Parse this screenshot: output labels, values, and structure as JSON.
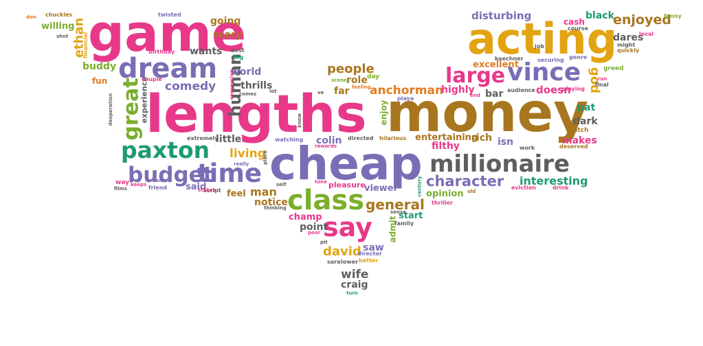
{
  "palette": {
    "pink": "#e8388a",
    "purple": "#7b6db5",
    "gold": "#e3a413",
    "brown": "#a8761e",
    "green": "#7bae2c",
    "teal": "#1d9b6f",
    "gray": "#5e5e5e",
    "orange": "#e07b20"
  },
  "words": [
    {
      "text": "game",
      "color": "pink"
    },
    {
      "text": "acting",
      "color": "gold"
    },
    {
      "text": "dream",
      "color": "purple"
    },
    {
      "text": "lengths",
      "color": "pink"
    },
    {
      "text": "money",
      "color": "brown"
    },
    {
      "text": "cheap",
      "color": "purple"
    },
    {
      "text": "millionaire",
      "color": "gray"
    },
    {
      "text": "paxton",
      "color": "teal"
    },
    {
      "text": "budget",
      "color": "purple"
    },
    {
      "text": "time",
      "color": "purple"
    },
    {
      "text": "class",
      "color": "green"
    },
    {
      "text": "say",
      "color": "pink"
    },
    {
      "text": "general",
      "color": "brown"
    },
    {
      "text": "character",
      "color": "purple"
    },
    {
      "text": "interesting",
      "color": "teal"
    },
    {
      "text": "large",
      "color": "pink"
    },
    {
      "text": "vince",
      "color": "purple"
    },
    {
      "text": "great",
      "color": "green"
    },
    {
      "text": "ethan",
      "color": "gold"
    },
    {
      "text": "human",
      "color": "gray"
    },
    {
      "text": "comedy",
      "color": "purple"
    },
    {
      "text": "people",
      "color": "brown"
    },
    {
      "text": "anchorman",
      "color": "orange"
    },
    {
      "text": "enjoyed",
      "color": "brown"
    },
    {
      "text": "disturbing",
      "color": "purple"
    },
    {
      "text": "black",
      "color": "teal"
    },
    {
      "text": "cash",
      "color": "pink"
    },
    {
      "text": "dares",
      "color": "gray"
    },
    {
      "text": "excellent",
      "color": "orange"
    },
    {
      "text": "buddy",
      "color": "green"
    },
    {
      "text": "going",
      "color": "brown"
    },
    {
      "text": "scary",
      "color": "brown"
    },
    {
      "text": "willing",
      "color": "green"
    },
    {
      "text": "wants",
      "color": "gray"
    },
    {
      "text": "world",
      "color": "purple"
    },
    {
      "text": "thrills",
      "color": "gray"
    },
    {
      "text": "role",
      "color": "brown"
    },
    {
      "text": "far",
      "color": "brown"
    },
    {
      "text": "highly",
      "color": "pink"
    },
    {
      "text": "bar",
      "color": "gray"
    },
    {
      "text": "doesn",
      "color": "pink"
    },
    {
      "text": "god",
      "color": "gold"
    },
    {
      "text": "pat",
      "color": "teal"
    },
    {
      "text": "dark",
      "color": "gray"
    },
    {
      "text": "makes",
      "color": "pink"
    },
    {
      "text": "entertaining",
      "color": "brown"
    },
    {
      "text": "rich",
      "color": "brown"
    },
    {
      "text": "filthy",
      "color": "pink"
    },
    {
      "text": "isn",
      "color": "purple"
    },
    {
      "text": "colin",
      "color": "purple"
    },
    {
      "text": "living",
      "color": "gold"
    },
    {
      "text": "little",
      "color": "gray"
    },
    {
      "text": "man",
      "color": "brown"
    },
    {
      "text": "notice",
      "color": "brown"
    },
    {
      "text": "feel",
      "color": "brown"
    },
    {
      "text": "said",
      "color": "purple"
    },
    {
      "text": "viewer",
      "color": "purple"
    },
    {
      "text": "pleasure",
      "color": "pink"
    },
    {
      "text": "opinion",
      "color": "green"
    },
    {
      "text": "champ",
      "color": "pink"
    },
    {
      "text": "point",
      "color": "gray"
    },
    {
      "text": "start",
      "color": "teal"
    },
    {
      "text": "admit",
      "color": "green"
    },
    {
      "text": "saw",
      "color": "purple"
    },
    {
      "text": "david",
      "color": "gold"
    },
    {
      "text": "wife",
      "color": "gray"
    },
    {
      "text": "craig",
      "color": "gray"
    },
    {
      "text": "enjoy",
      "color": "green"
    },
    {
      "text": "experience",
      "color": "gray"
    },
    {
      "text": "fun",
      "color": "orange"
    },
    {
      "text": "greed",
      "color": "green"
    },
    {
      "text": "playa",
      "color": "purple"
    },
    {
      "text": "day",
      "color": "green"
    },
    {
      "text": "watch",
      "color": "brown"
    },
    {
      "text": "final",
      "color": "gray"
    },
    {
      "text": "playing",
      "color": "pink"
    },
    {
      "text": "eviction",
      "color": "pink"
    },
    {
      "text": "drink",
      "color": "pink"
    },
    {
      "text": "thriller",
      "color": "pink"
    },
    {
      "text": "family",
      "color": "gray"
    },
    {
      "text": "director",
      "color": "purple"
    },
    {
      "text": "lower",
      "color": "gray"
    },
    {
      "text": "better",
      "color": "gold"
    },
    {
      "text": "sara",
      "color": "gray"
    },
    {
      "text": "turn",
      "color": "teal"
    },
    {
      "text": "hilarious",
      "color": "brown"
    },
    {
      "text": "directed",
      "color": "gray"
    },
    {
      "text": "watching",
      "color": "purple"
    },
    {
      "text": "rewards",
      "color": "pink"
    },
    {
      "text": "extremely",
      "color": "gray"
    },
    {
      "text": "really",
      "color": "purple"
    },
    {
      "text": "fame",
      "color": "purple"
    },
    {
      "text": "way",
      "color": "pink"
    },
    {
      "text": "friend",
      "color": "purple"
    },
    {
      "text": "script",
      "color": "gray"
    },
    {
      "text": "chuckles",
      "color": "brown"
    },
    {
      "text": "twisted",
      "color": "purple"
    },
    {
      "text": "funny",
      "color": "green"
    },
    {
      "text": "birthday",
      "color": "pink"
    },
    {
      "text": "best",
      "color": "gray"
    },
    {
      "text": "big",
      "color": "teal"
    },
    {
      "text": "financial",
      "color": "gold"
    },
    {
      "text": "local",
      "color": "pink"
    },
    {
      "text": "course",
      "color": "gray"
    },
    {
      "text": "securing",
      "color": "purple"
    },
    {
      "text": "audience",
      "color": "gray"
    },
    {
      "text": "work",
      "color": "gray"
    },
    {
      "text": "deserved",
      "color": "brown"
    },
    {
      "text": "quickly",
      "color": "brown"
    },
    {
      "text": "genre",
      "color": "purple"
    },
    {
      "text": "job",
      "color": "gray"
    },
    {
      "text": "koechner",
      "color": "gray"
    },
    {
      "text": "might",
      "color": "gray"
    },
    {
      "text": "desperation",
      "color": "gray"
    },
    {
      "text": "couple",
      "color": "pink"
    },
    {
      "text": "engrossing",
      "color": "pink"
    },
    {
      "text": "stakes",
      "color": "pink"
    },
    {
      "text": "scenes",
      "color": "green"
    },
    {
      "text": "feeling",
      "color": "orange"
    },
    {
      "text": "tone",
      "color": "pink"
    },
    {
      "text": "poor",
      "color": "pink"
    },
    {
      "text": "sense",
      "color": "gray"
    },
    {
      "text": "place",
      "color": "gray"
    },
    {
      "text": "self",
      "color": "gray"
    },
    {
      "text": "thinking",
      "color": "gray"
    },
    {
      "text": "old",
      "color": "brown"
    },
    {
      "text": "pit",
      "color": "gray"
    },
    {
      "text": "shot",
      "color": "gray"
    },
    {
      "text": "don",
      "color": "orange"
    },
    {
      "text": "run",
      "color": "pink"
    },
    {
      "text": "end",
      "color": "pink"
    },
    {
      "text": "century",
      "color": "teal"
    },
    {
      "text": "lot",
      "color": "gray"
    },
    {
      "text": "know",
      "color": "gray"
    },
    {
      "text": "ve",
      "color": "gray"
    },
    {
      "text": "comes",
      "color": "gray"
    },
    {
      "text": "films",
      "color": "gray"
    },
    {
      "text": "keeps",
      "color": "pink"
    }
  ]
}
